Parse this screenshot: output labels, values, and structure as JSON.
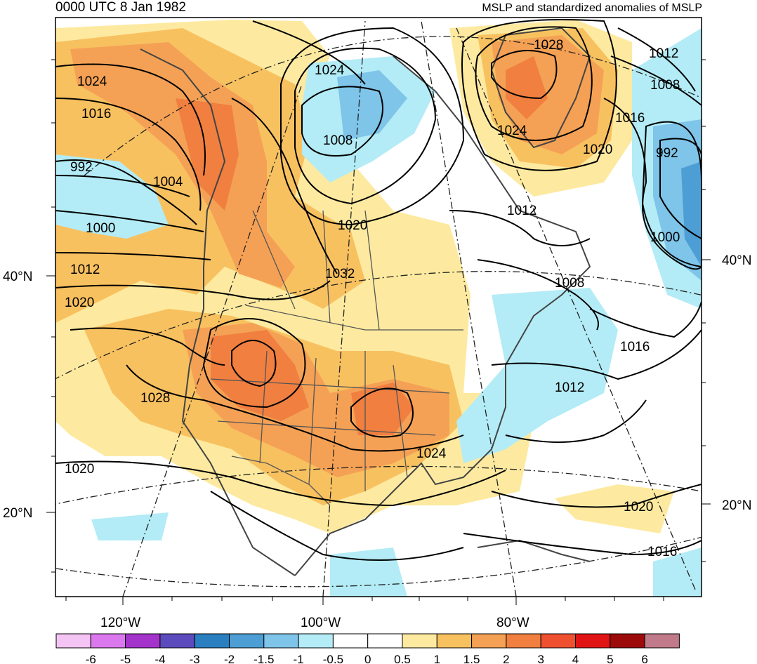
{
  "title": {
    "left": "0000 UTC 8 Jan 1982",
    "right": "MSLP and standardized anomalies of MSLP"
  },
  "map": {
    "lat_labels": [
      {
        "side": "left",
        "text": "40°N"
      },
      {
        "side": "left",
        "text": "20°N"
      },
      {
        "side": "right",
        "text": "40°N"
      },
      {
        "side": "right",
        "text": "20°N"
      }
    ],
    "lon_labels": [
      "120°W",
      "100°W",
      "80°W"
    ],
    "contour_labels": [
      "1024",
      "1016",
      "992",
      "1004",
      "1000",
      "1012",
      "1020",
      "1028",
      "1020",
      "1024",
      "1008",
      "1020",
      "1032",
      "1028",
      "1024",
      "1012",
      "1008",
      "1016",
      "1012",
      "1000",
      "992",
      "1020",
      "1024",
      "1016",
      "1008",
      "1012",
      "1020",
      "1016"
    ],
    "anomaly_colors": {
      "pos1": "#fdeaa0",
      "pos2": "#f8c160",
      "pos3": "#f4a155",
      "pos4": "#f07f40",
      "neg1": "#b3ecf6",
      "neg2": "#7fc4e9",
      "neg3": "#4d9ed4"
    }
  },
  "colorbar": {
    "labels": [
      "-6",
      "-5",
      "-4",
      "-3",
      "-2",
      "-1.5",
      "-1",
      "-0.5",
      "0",
      "0.5",
      "1",
      "1.5",
      "2",
      "3",
      "4",
      "5",
      "6"
    ],
    "colors": [
      "#f4c4f4",
      "#dc78ee",
      "#a433cc",
      "#5b4bbc",
      "#2a7fc1",
      "#4d9ed4",
      "#7fc4e9",
      "#b3ecf6",
      "#ffffff",
      "#ffffff",
      "#fdeaa0",
      "#f8c160",
      "#f4a155",
      "#f07f40",
      "#ee5030",
      "#e01414",
      "#9c0a0a",
      "#c07a8a"
    ]
  }
}
